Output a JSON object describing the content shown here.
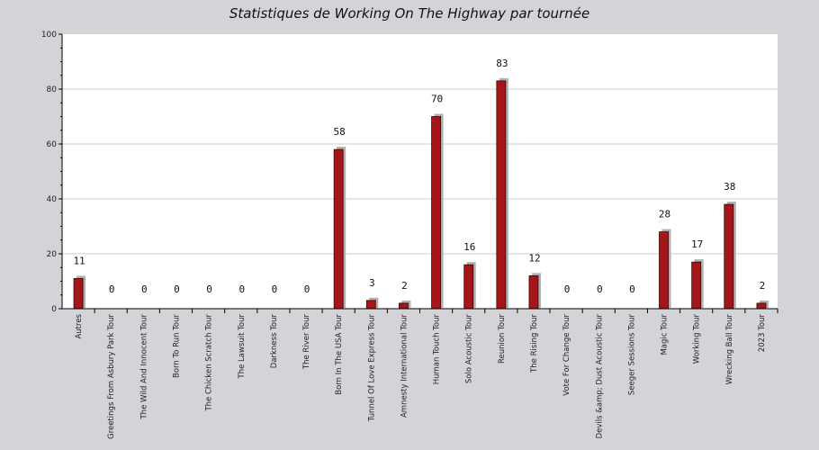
{
  "chart_data": {
    "type": "bar",
    "title": "Statistiques de Working On The Highway par tournée",
    "xlabel": "",
    "ylabel": "",
    "ylim": [
      0,
      100
    ],
    "yticks": [
      0,
      20,
      40,
      60,
      80,
      100
    ],
    "grid": true,
    "categories": [
      "Autres",
      "Greetings From Asbury Park Tour",
      "The Wild And Innocent Tour",
      "Born To Run Tour",
      "The Chicken Scratch Tour",
      "The Lawsuit Tour",
      "Darkness Tour",
      "The River Tour",
      "Born In The USA Tour",
      "Tunnel Of Love Express Tour",
      "Amnesty International Tour",
      "Human Touch Tour",
      "Solo Acoustic Tour",
      "Reunion Tour",
      "The Rising Tour",
      "Vote For Change Tour",
      "Devils &amp; Dust Acoustic Tour",
      "Seeger Sessions Tour",
      "Magic Tour",
      "Working Tour",
      "Wrecking Ball Tour",
      "2023 Tour"
    ],
    "values": [
      11,
      0,
      0,
      0,
      0,
      0,
      0,
      0,
      58,
      3,
      2,
      70,
      16,
      83,
      12,
      0,
      0,
      0,
      28,
      17,
      38,
      2
    ],
    "colors": {
      "bar": "#a5161a",
      "bar_stroke": "#3a0000",
      "shadow": "#b0b0b0",
      "plot_bg": "#ffffff",
      "page_bg": "#d4d4d8",
      "grid": "#cccccc"
    }
  }
}
